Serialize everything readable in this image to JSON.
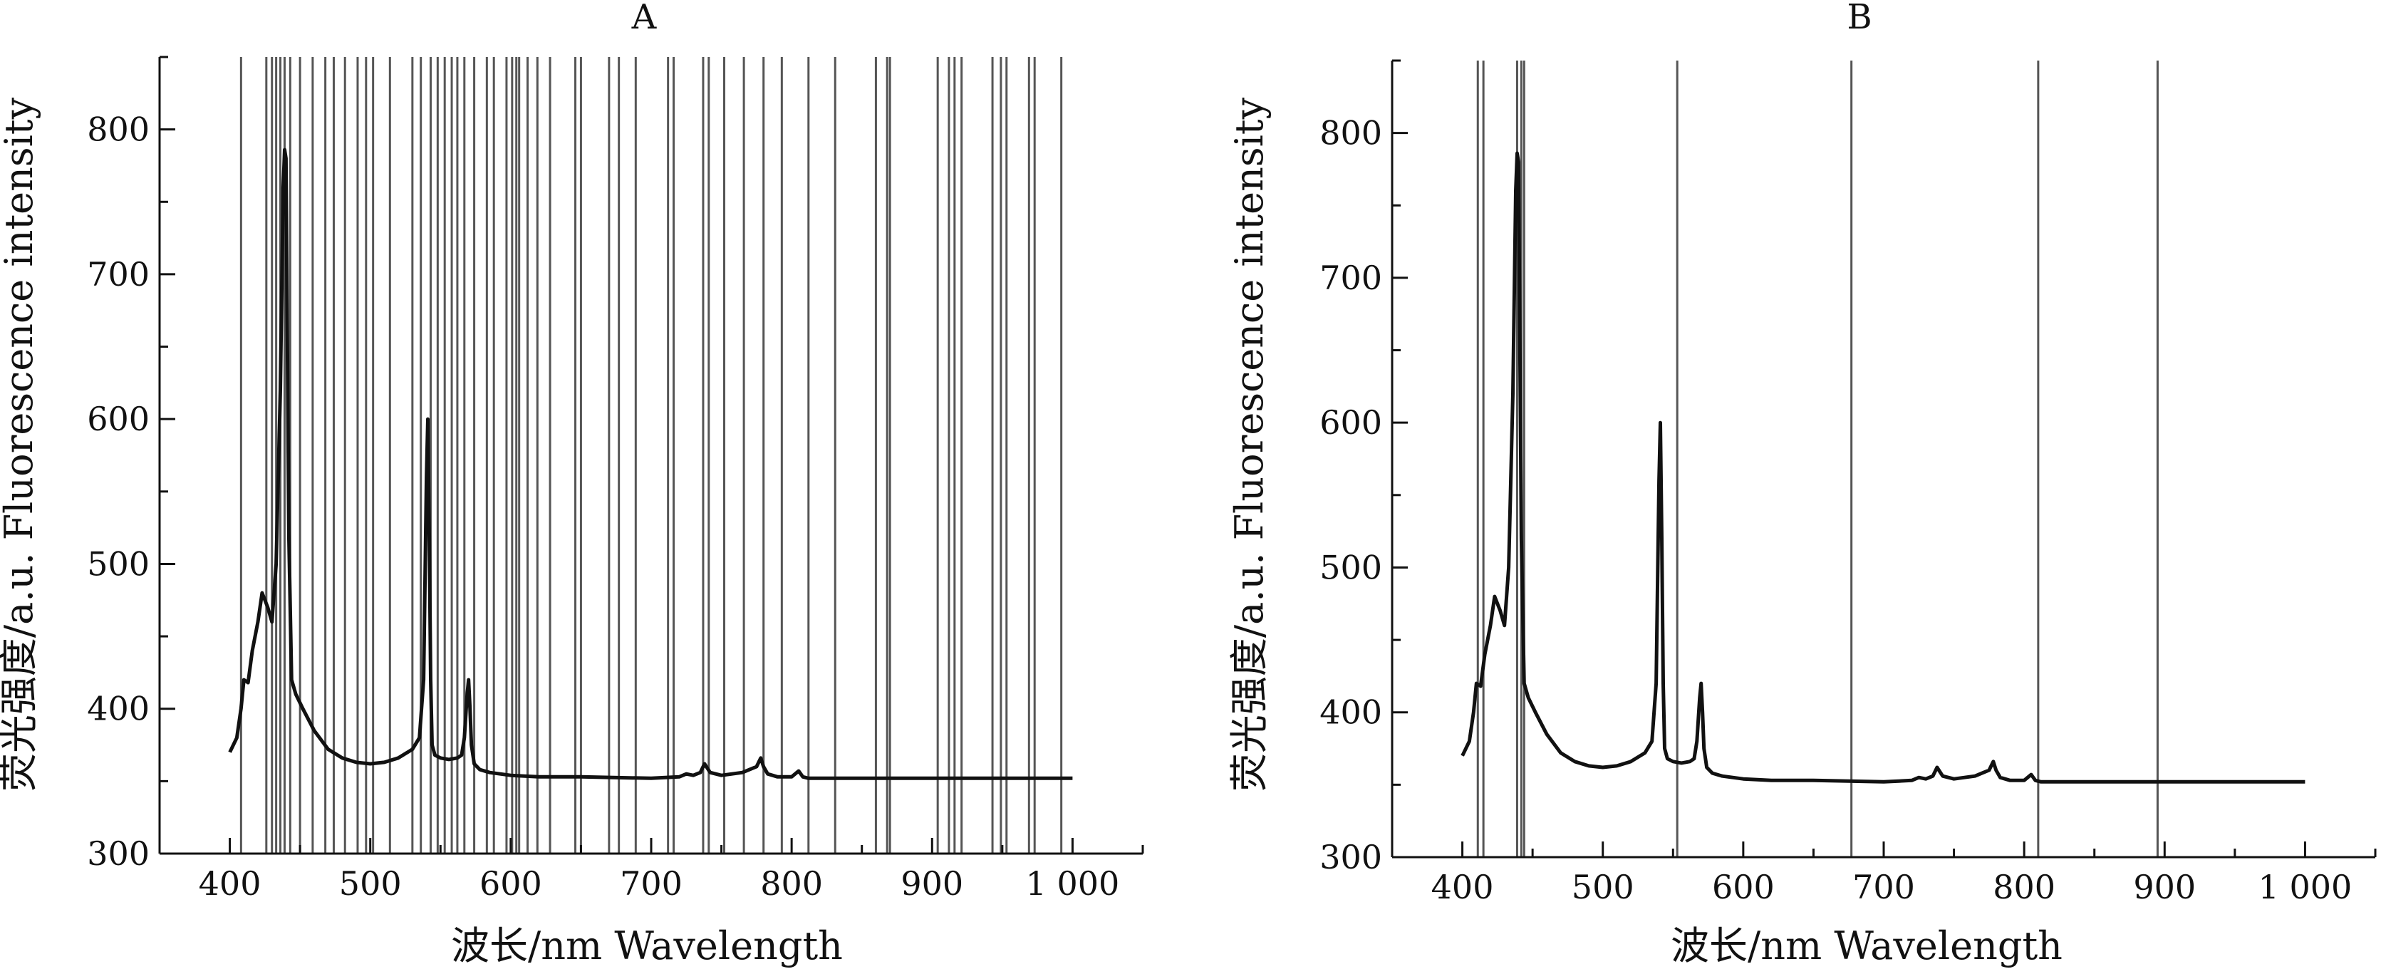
{
  "chart_data": [
    {
      "type": "line",
      "title": "A",
      "xlabel": "波长/nm Wavelength",
      "ylabel": "荧光强度/a.u.  Fluorescence intensity",
      "xlim": [
        350,
        1050
      ],
      "ylim": [
        300,
        850
      ],
      "x_ticks": [
        400,
        500,
        600,
        700,
        800,
        900,
        1000
      ],
      "x_tick_labels": [
        "400",
        "500",
        "600",
        "700",
        "800",
        "900",
        "1 000"
      ],
      "y_ticks": [
        300,
        400,
        500,
        600,
        700,
        800
      ],
      "y_tick_labels": [
        "300",
        "400",
        "500",
        "600",
        "700",
        "800"
      ],
      "grid": false,
      "series": [
        {
          "x": [
            400,
            405,
            408,
            410,
            413,
            416,
            420,
            423,
            427,
            430,
            433,
            436,
            438,
            439,
            440,
            441,
            442,
            444,
            447,
            452,
            460,
            470,
            480,
            490,
            500,
            510,
            520,
            530,
            535,
            538,
            540,
            541,
            542,
            543,
            544,
            546,
            550,
            556,
            562,
            565,
            567,
            569,
            570,
            571,
            572,
            574,
            578,
            585,
            600,
            620,
            650,
            700,
            720,
            725,
            730,
            735,
            738,
            742,
            750,
            765,
            770,
            775,
            778,
            780,
            783,
            790,
            800,
            805,
            808,
            812,
            850,
            900,
            950,
            1000
          ],
          "values": [
            370,
            380,
            400,
            420,
            418,
            440,
            460,
            480,
            470,
            460,
            500,
            620,
            760,
            786,
            780,
            650,
            520,
            420,
            410,
            400,
            385,
            372,
            366,
            363,
            362,
            363,
            366,
            372,
            380,
            420,
            560,
            600,
            520,
            420,
            375,
            368,
            366,
            365,
            366,
            368,
            380,
            410,
            420,
            400,
            375,
            362,
            358,
            356,
            354,
            353,
            353,
            352,
            353,
            355,
            354,
            356,
            362,
            356,
            354,
            356,
            358,
            360,
            366,
            360,
            355,
            353,
            353,
            357,
            353,
            352,
            352,
            352,
            352,
            352
          ]
        }
      ],
      "reference_lines_x": [
        408,
        426,
        430,
        433,
        436,
        439,
        443,
        450,
        459,
        468,
        474,
        482,
        491,
        497,
        502,
        514,
        530,
        536,
        543,
        548,
        553,
        558,
        562,
        567,
        574,
        583,
        588,
        597,
        601,
        604,
        606,
        612,
        619,
        628,
        646,
        650,
        670,
        677,
        689,
        712,
        716,
        737,
        741,
        752,
        766,
        780,
        793,
        812,
        831,
        860,
        868,
        870,
        904,
        912,
        916,
        921,
        943,
        949,
        953,
        969,
        973,
        992
      ]
    },
    {
      "type": "line",
      "title": "B",
      "xlabel": "波长/nm Wavelength",
      "ylabel": "荧光强度/a.u.  Fluorescence intensity",
      "xlim": [
        350,
        1050
      ],
      "ylim": [
        300,
        850
      ],
      "x_ticks": [
        400,
        500,
        600,
        700,
        800,
        900,
        1000
      ],
      "x_tick_labels": [
        "400",
        "500",
        "600",
        "700",
        "800",
        "900",
        "1 000"
      ],
      "y_ticks": [
        300,
        400,
        500,
        600,
        700,
        800
      ],
      "y_tick_labels": [
        "300",
        "400",
        "500",
        "600",
        "700",
        "800"
      ],
      "grid": false,
      "series": [
        {
          "x": [
            400,
            405,
            408,
            410,
            413,
            416,
            420,
            423,
            427,
            430,
            433,
            436,
            438,
            439,
            440,
            441,
            442,
            444,
            447,
            452,
            460,
            470,
            480,
            490,
            500,
            510,
            520,
            530,
            535,
            538,
            540,
            541,
            542,
            543,
            544,
            546,
            550,
            556,
            562,
            565,
            567,
            569,
            570,
            571,
            572,
            574,
            578,
            585,
            600,
            620,
            650,
            700,
            720,
            725,
            730,
            735,
            738,
            742,
            750,
            765,
            770,
            775,
            778,
            780,
            783,
            790,
            800,
            805,
            808,
            812,
            850,
            900,
            950,
            1000
          ],
          "values": [
            370,
            380,
            400,
            420,
            418,
            440,
            460,
            480,
            470,
            460,
            500,
            620,
            760,
            786,
            780,
            650,
            520,
            420,
            410,
            400,
            385,
            372,
            366,
            363,
            362,
            363,
            366,
            372,
            380,
            420,
            560,
            600,
            520,
            420,
            375,
            368,
            366,
            365,
            366,
            368,
            380,
            410,
            420,
            400,
            375,
            362,
            358,
            356,
            354,
            353,
            353,
            352,
            353,
            355,
            354,
            356,
            362,
            356,
            354,
            356,
            358,
            360,
            366,
            360,
            355,
            353,
            353,
            357,
            353,
            352,
            352,
            352,
            352,
            352
          ]
        }
      ],
      "reference_lines_x": [
        411,
        415,
        439,
        442,
        444,
        553,
        677,
        810,
        895
      ]
    }
  ],
  "colors": {
    "curve": "#111111",
    "reference_line": "#555555",
    "axis": "#111111"
  }
}
